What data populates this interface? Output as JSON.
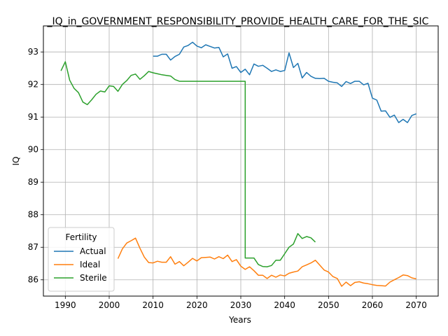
{
  "chart_data": {
    "type": "line",
    "title": "_IQ_in_GOVERNMENT_RESPONSIBILITY_PROVIDE_HEALTH_CARE_FOR_THE_SIC",
    "xlabel": "Years",
    "ylabel": "IQ",
    "xlim": [
      1985,
      2075
    ],
    "ylim": [
      85.5,
      93.8
    ],
    "xticks": [
      1990,
      2000,
      2010,
      2020,
      2030,
      2040,
      2050,
      2060,
      2070
    ],
    "yticks": [
      86,
      87,
      88,
      89,
      90,
      91,
      92,
      93
    ],
    "grid": true,
    "legend": {
      "title": "Fertility",
      "position": "lower-left"
    },
    "series": [
      {
        "name": "Actual",
        "color": "#1f77b4",
        "x": [
          2010,
          2011,
          2012,
          2013,
          2014,
          2015,
          2016,
          2017,
          2018,
          2019,
          2020,
          2021,
          2022,
          2023,
          2024,
          2025,
          2026,
          2027,
          2028,
          2029,
          2030,
          2031,
          2032,
          2033,
          2034,
          2035,
          2036,
          2037,
          2038,
          2039,
          2040,
          2041,
          2042,
          2043,
          2044,
          2045,
          2046,
          2047,
          2048,
          2049,
          2050,
          2051,
          2052,
          2053,
          2054,
          2055,
          2056,
          2057,
          2058,
          2059,
          2060,
          2061,
          2062,
          2063,
          2064,
          2065,
          2066,
          2067,
          2068,
          2069,
          2070
        ],
        "y": [
          92.87,
          92.87,
          92.93,
          92.93,
          92.75,
          92.86,
          92.93,
          93.15,
          93.2,
          93.3,
          93.18,
          93.13,
          93.22,
          93.17,
          93.12,
          93.14,
          92.85,
          92.94,
          92.5,
          92.55,
          92.37,
          92.47,
          92.3,
          92.63,
          92.56,
          92.59,
          92.5,
          92.4,
          92.45,
          92.4,
          92.43,
          92.97,
          92.52,
          92.65,
          92.2,
          92.37,
          92.25,
          92.19,
          92.18,
          92.19,
          92.1,
          92.07,
          92.05,
          91.94,
          92.09,
          92.03,
          92.1,
          92.1,
          91.99,
          92.04,
          91.58,
          91.52,
          91.18,
          91.19,
          90.99,
          91.06,
          90.83,
          90.93,
          90.83,
          91.05,
          91.1
        ]
      },
      {
        "name": "Ideal",
        "color": "#ff7f0e",
        "x": [
          2002,
          2003,
          2004,
          2005,
          2006,
          2007,
          2008,
          2009,
          2010,
          2011,
          2012,
          2013,
          2014,
          2015,
          2016,
          2017,
          2018,
          2019,
          2020,
          2021,
          2022,
          2023,
          2024,
          2025,
          2026,
          2027,
          2028,
          2029,
          2030,
          2031,
          2032,
          2033,
          2034,
          2035,
          2036,
          2037,
          2038,
          2039,
          2040,
          2041,
          2042,
          2043,
          2044,
          2045,
          2046,
          2047,
          2048,
          2049,
          2050,
          2051,
          2052,
          2053,
          2054,
          2055,
          2056,
          2057,
          2058,
          2059,
          2060,
          2061,
          2062,
          2063,
          2064,
          2065,
          2066,
          2067,
          2068,
          2069,
          2070
        ],
        "y": [
          86.65,
          86.95,
          87.13,
          87.2,
          87.28,
          86.97,
          86.7,
          86.53,
          86.52,
          86.57,
          86.54,
          86.54,
          86.71,
          86.48,
          86.56,
          86.43,
          86.54,
          86.66,
          86.58,
          86.68,
          86.69,
          86.7,
          86.64,
          86.71,
          86.65,
          86.76,
          86.56,
          86.62,
          86.42,
          86.32,
          86.4,
          86.28,
          86.14,
          86.14,
          86.04,
          86.14,
          86.08,
          86.15,
          86.12,
          86.2,
          86.24,
          86.27,
          86.4,
          86.46,
          86.52,
          86.6,
          86.45,
          86.3,
          86.24,
          86.1,
          86.04,
          85.8,
          85.93,
          85.82,
          85.92,
          85.94,
          85.9,
          85.88,
          85.85,
          85.83,
          85.82,
          85.81,
          85.93,
          86.0,
          86.07,
          86.15,
          86.13,
          86.06,
          86.03
        ]
      },
      {
        "name": "Sterile",
        "color": "#2ca02c",
        "x": [
          1989,
          1990,
          1991,
          1992,
          1993,
          1994,
          1995,
          1996,
          1997,
          1998,
          1999,
          2000,
          2001,
          2002,
          2003,
          2004,
          2005,
          2006,
          2007,
          2008,
          2009,
          2010,
          2011,
          2012,
          2013,
          2014,
          2015,
          2016,
          2017,
          2018,
          2019,
          2020,
          2021,
          2022,
          2023,
          2024,
          2025,
          2026,
          2027,
          2028,
          2029,
          2030,
          2031,
          2031,
          2032,
          2033,
          2034,
          2035,
          2036,
          2037,
          2038,
          2039,
          2040,
          2041,
          2042,
          2043,
          2044,
          2045,
          2046,
          2047
        ],
        "y": [
          92.42,
          92.7,
          92.13,
          91.88,
          91.75,
          91.46,
          91.38,
          91.53,
          91.7,
          91.8,
          91.77,
          91.96,
          91.94,
          91.79,
          92.0,
          92.12,
          92.28,
          92.32,
          92.16,
          92.27,
          92.4,
          92.36,
          92.33,
          92.3,
          92.28,
          92.26,
          92.15,
          92.1,
          92.1,
          92.1,
          92.1,
          92.1,
          92.1,
          92.1,
          92.1,
          92.1,
          92.1,
          92.1,
          92.1,
          92.1,
          92.1,
          92.1,
          92.1,
          86.67,
          86.67,
          86.67,
          86.47,
          86.41,
          86.4,
          86.44,
          86.6,
          86.6,
          86.8,
          87.0,
          87.1,
          87.42,
          87.27,
          87.33,
          87.29,
          87.16
        ]
      }
    ]
  }
}
